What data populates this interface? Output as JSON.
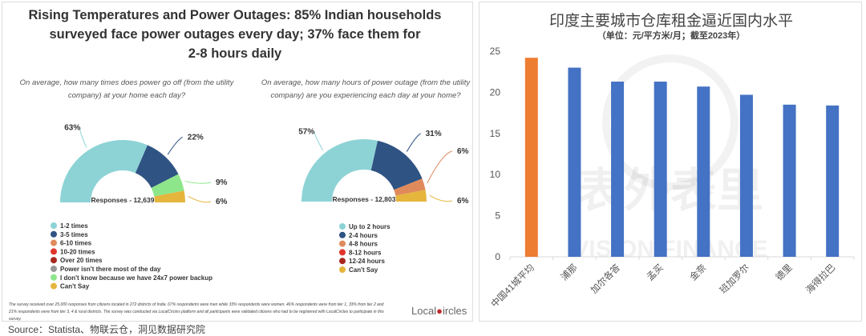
{
  "left_panel": {
    "title_lines": [
      "Rising Temperatures and Power Outages: 85% Indian households",
      "surveyed face power outages every day; 37% face them for",
      "2-8 hours daily"
    ],
    "footnote": "The survey received over 25,000 responses from citizens located in 272 districts of India. 67% respondents were men while 33% respondents were women. 46% respondents were from tier 1, 33% from tier 2 and 21% respondents were from tier 3, 4 & rural districts. The survey was conducted via LocalCircles platform and all participants were validated citizens who had to be registered with LocalCircles to participate in this survey.",
    "logo": "LocalCircles"
  },
  "source": "Source：Statista、物联云仓，洞见数据研究院",
  "chart_data": [
    {
      "type": "pie",
      "variant": "semi-donut",
      "question": [
        "On average, how many times does power go off (from the utility",
        "company) at your home each day?"
      ],
      "center_label": "Responses - 12,639",
      "legend": [
        {
          "label": "1-2 times",
          "color": "#8dd3d6"
        },
        {
          "label": "3-5 times",
          "color": "#2f5383"
        },
        {
          "label": "6-10 times",
          "color": "#e08a5c"
        },
        {
          "label": "10-20 times",
          "color": "#e0352b"
        },
        {
          "label": "Over 20 times",
          "color": "#a8271e"
        },
        {
          "label": "Power isn't there most of the day",
          "color": "#999999"
        },
        {
          "label": "I don't know because we have 24x7 power backup",
          "color": "#8ee68a"
        },
        {
          "label": "Can't Say",
          "color": "#e5b53c"
        }
      ],
      "slices": [
        {
          "label": "1-2 times",
          "value": 63,
          "display": "63%",
          "color": "#8dd3d6"
        },
        {
          "label": "3-5 times",
          "value": 22,
          "display": "22%",
          "color": "#2f5383"
        },
        {
          "label": "I don't know because we have 24x7 power backup",
          "value": 9,
          "display": "9%",
          "color": "#8ee68a"
        },
        {
          "label": "Can't Say",
          "value": 6,
          "display": "6%",
          "color": "#e5b53c"
        }
      ]
    },
    {
      "type": "pie",
      "variant": "semi-donut",
      "question": [
        "On average, how many hours of power outage (from the utility",
        "company) are you experiencing each day at your home?"
      ],
      "center_label": "Responses - 12,803",
      "legend": [
        {
          "label": "Up to 2 hours",
          "color": "#8dd3d6"
        },
        {
          "label": "2-4 hours",
          "color": "#2f5383"
        },
        {
          "label": "4-8 hours",
          "color": "#e08a5c"
        },
        {
          "label": "8-12 hours",
          "color": "#e0352b"
        },
        {
          "label": "12-24 hours",
          "color": "#a8271e"
        },
        {
          "label": "Can't Say",
          "color": "#e5b53c"
        }
      ],
      "slices": [
        {
          "label": "Up to 2 hours",
          "value": 57,
          "display": "57%",
          "color": "#8dd3d6"
        },
        {
          "label": "2-4 hours",
          "value": 31,
          "display": "31%",
          "color": "#2f5383"
        },
        {
          "label": "4-8 hours",
          "value": 6,
          "display": "6%",
          "color": "#e08a5c"
        },
        {
          "label": "Can't Say",
          "value": 6,
          "display": "6%",
          "color": "#e5b53c"
        }
      ]
    },
    {
      "type": "bar",
      "title": "印度主要城市仓库租金逼近国内水平",
      "subtitle": "（单位：元/平方米/月；截至2023年）",
      "categories": [
        "中国41城平均",
        "浦那",
        "加尔各答",
        "孟买",
        "金奈",
        "班加罗尔",
        "德里",
        "海得拉巴"
      ],
      "values": [
        24.2,
        23.0,
        21.3,
        21.3,
        20.7,
        19.7,
        18.5,
        18.4
      ],
      "colors": [
        "#ed7d31",
        "#4472c4",
        "#4472c4",
        "#4472c4",
        "#4472c4",
        "#4472c4",
        "#4472c4",
        "#4472c4"
      ],
      "ylim": [
        0,
        25
      ],
      "yticks": [
        "0",
        "5",
        "10",
        "15",
        "20",
        "25"
      ],
      "grid": false,
      "watermark": [
        "表外表里",
        "VISION FINANCE"
      ]
    }
  ]
}
